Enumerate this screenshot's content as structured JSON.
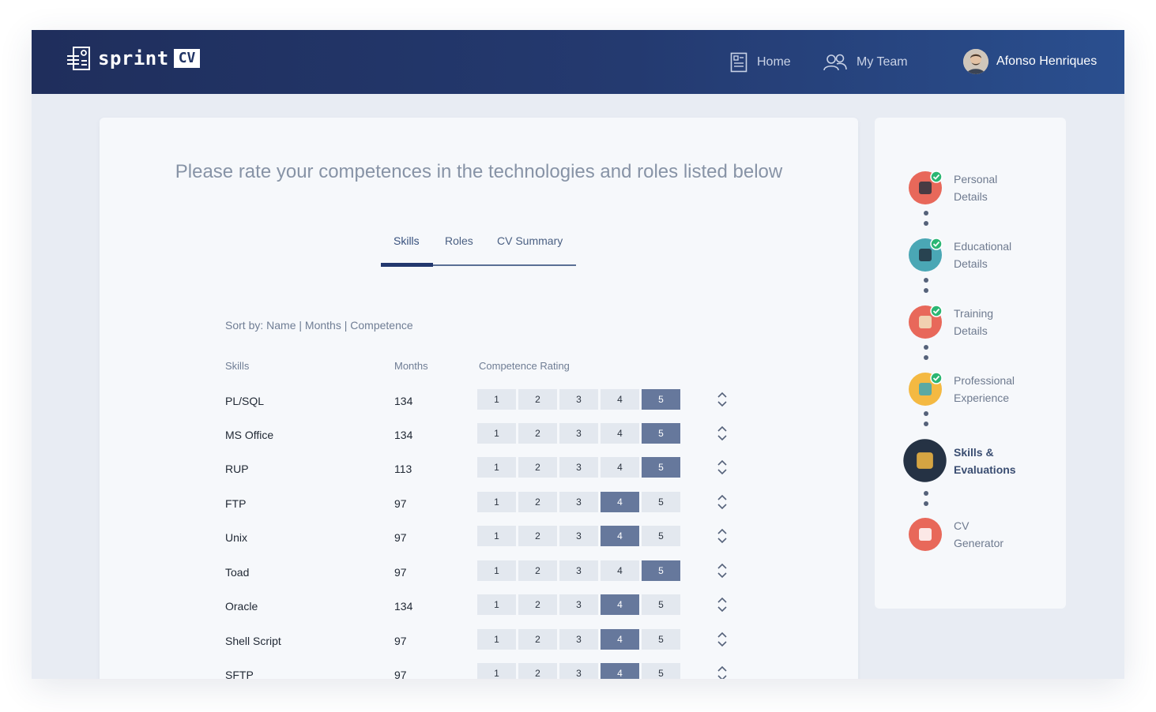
{
  "header": {
    "logo_text": "sprint",
    "logo_badge": "CV",
    "nav": [
      {
        "label": "Home",
        "icon": "document-icon"
      },
      {
        "label": "My Team",
        "icon": "team-icon"
      }
    ],
    "user_name": "Afonso Henriques"
  },
  "main": {
    "heading": "Please rate your competences in the technologies and roles listed below",
    "tabs": [
      {
        "label": "Skills",
        "active": true
      },
      {
        "label": "Roles",
        "active": false
      },
      {
        "label": "CV Summary",
        "active": false
      }
    ],
    "sort": {
      "prefix": "Sort by:",
      "name": "Name",
      "months": "Months",
      "competence": "Competence",
      "sep": "|"
    },
    "columns": {
      "skill": "Skills",
      "months": "Months",
      "rating": "Competence Rating"
    },
    "rating_scale": [
      "1",
      "2",
      "3",
      "4",
      "5"
    ],
    "rows": [
      {
        "skill": "PL/SQL",
        "months": "134",
        "rating": 5
      },
      {
        "skill": "MS Office",
        "months": "134",
        "rating": 5
      },
      {
        "skill": "RUP",
        "months": "113",
        "rating": 5
      },
      {
        "skill": "FTP",
        "months": "97",
        "rating": 4
      },
      {
        "skill": "Unix",
        "months": "97",
        "rating": 4
      },
      {
        "skill": "Toad",
        "months": "97",
        "rating": 5
      },
      {
        "skill": "Oracle",
        "months": "134",
        "rating": 4
      },
      {
        "skill": "Shell Script",
        "months": "97",
        "rating": 4
      },
      {
        "skill": "SFTP",
        "months": "97",
        "rating": 4
      }
    ]
  },
  "progress": {
    "steps": [
      {
        "line1": "Personal",
        "line2": "Details",
        "icon": "person-icon",
        "done": true
      },
      {
        "line1": "Educational",
        "line2": "Details",
        "icon": "graduation-cap-icon",
        "done": true
      },
      {
        "line1": "Training",
        "line2": "Details",
        "icon": "training-icon",
        "done": true
      },
      {
        "line1": "Professional",
        "line2": "Experience",
        "icon": "briefcase-icon",
        "done": true
      },
      {
        "line1": "Skills &",
        "line2": "Evaluations",
        "icon": "skills-icon",
        "active": true
      },
      {
        "line1": "CV",
        "line2": "Generator",
        "icon": "cv-document-icon"
      }
    ]
  },
  "colors": {
    "header_start": "#1f2e5c",
    "header_end": "#2a4f8f",
    "rating_selected": "#66789c",
    "rating_default": "#e3e8ef",
    "check_green": "#2bb673"
  }
}
